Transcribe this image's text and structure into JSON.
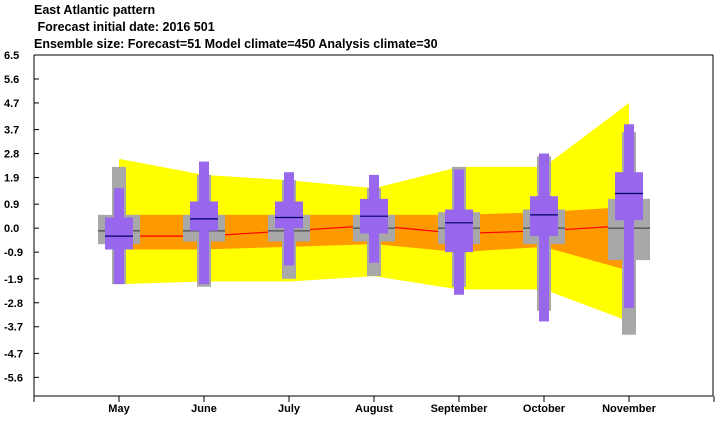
{
  "chart_data": {
    "type": "box",
    "title": "East Atlantic pattern",
    "subtitle": " Forecast initial date: 2016 501",
    "subtitle2": "Ensemble size: Forecast=51 Model climate=450 Analysis climate=30",
    "categories": [
      "May",
      "June",
      "July",
      "August",
      "September",
      "October",
      "November"
    ],
    "yticks": [
      "6.5",
      "5.6",
      "4.7",
      "3.7",
      "2.8",
      "1.9",
      "0.9",
      "0.0",
      "-0.9",
      "-1.9",
      "-2.8",
      "-3.7",
      "-4.7",
      "-5.6"
    ],
    "ylim": [
      -6.3,
      6.5
    ],
    "analysis_climate": {
      "q5": [
        -2.1,
        -2.0,
        -2.0,
        -1.8,
        -2.3,
        -2.3,
        -3.5
      ],
      "q25": [
        -0.8,
        -0.8,
        -0.7,
        -0.6,
        -0.9,
        -0.7,
        -1.6
      ],
      "q75": [
        0.5,
        0.5,
        0.5,
        0.5,
        0.5,
        0.6,
        0.8
      ],
      "q95": [
        2.6,
        2.0,
        1.8,
        1.5,
        2.3,
        2.3,
        4.7
      ]
    },
    "analysis_median": [
      -0.3,
      -0.3,
      -0.1,
      0.1,
      -0.2,
      -0.1,
      0.1
    ],
    "model_climate": {
      "min": [
        -2.1,
        -2.2,
        -1.9,
        -1.8,
        -2.2,
        -3.1,
        -4.0
      ],
      "q25": [
        -0.6,
        -0.5,
        -0.5,
        -0.5,
        -0.6,
        -0.6,
        -1.2
      ],
      "median": [
        -0.1,
        -0.1,
        -0.1,
        0.0,
        0.0,
        0.0,
        0.0
      ],
      "q75": [
        0.5,
        0.5,
        0.5,
        0.5,
        0.6,
        0.7,
        1.1
      ],
      "max": [
        2.3,
        2.0,
        1.8,
        1.5,
        2.3,
        2.7,
        3.6
      ]
    },
    "forecast": {
      "min": [
        -2.1,
        -2.1,
        -1.4,
        -1.3,
        -2.5,
        -3.5,
        -3.0
      ],
      "q25": [
        -0.8,
        -0.1,
        0.0,
        -0.2,
        -0.9,
        -0.3,
        0.3
      ],
      "median": [
        -0.3,
        0.35,
        0.4,
        0.45,
        0.2,
        0.5,
        1.3
      ],
      "q75": [
        0.4,
        1.0,
        1.0,
        1.1,
        0.7,
        1.2,
        2.1
      ],
      "max": [
        1.5,
        2.5,
        2.1,
        2.0,
        2.2,
        2.8,
        3.9
      ]
    },
    "colors": {
      "outer_band": "#ffff00",
      "inner_band": "#ff9900",
      "median_line": "#ff0000",
      "model_climate": "#a8a8a8",
      "forecast": "#9966ee",
      "median_mark": "#000066"
    }
  }
}
